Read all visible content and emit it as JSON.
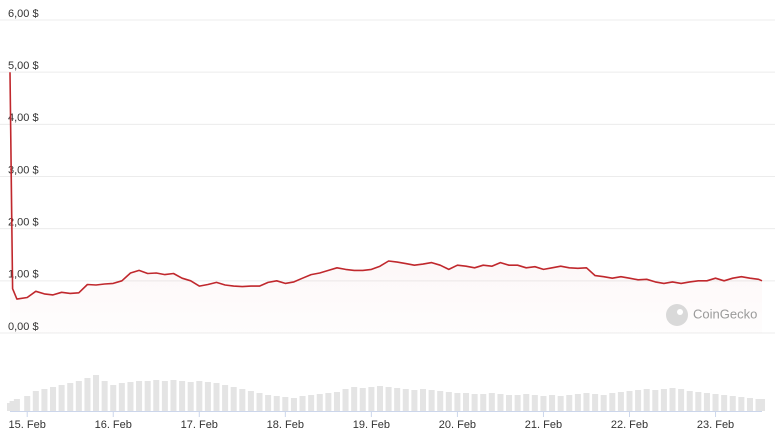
{
  "chart_data": {
    "type": "line",
    "watermark": "CoinGecko",
    "x": [
      -0.2,
      -0.17,
      -0.12,
      0,
      0.1,
      0.2,
      0.3,
      0.4,
      0.5,
      0.6,
      0.7,
      0.8,
      0.9,
      1.0,
      1.1,
      1.2,
      1.3,
      1.4,
      1.5,
      1.6,
      1.7,
      1.8,
      1.9,
      2.0,
      2.1,
      2.2,
      2.3,
      2.4,
      2.5,
      2.6,
      2.7,
      2.8,
      2.9,
      3.0,
      3.1,
      3.2,
      3.3,
      3.4,
      3.5,
      3.6,
      3.7,
      3.8,
      3.9,
      4.0,
      4.1,
      4.2,
      4.3,
      4.4,
      4.5,
      4.6,
      4.7,
      4.8,
      4.9,
      5.0,
      5.1,
      5.2,
      5.3,
      5.4,
      5.5,
      5.6,
      5.7,
      5.8,
      5.9,
      6.0,
      6.1,
      6.2,
      6.3,
      6.4,
      6.5,
      6.6,
      6.7,
      6.8,
      6.9,
      7.0,
      7.1,
      7.2,
      7.3,
      7.4,
      7.5,
      7.6,
      7.7,
      7.8,
      7.9,
      8.0,
      8.1,
      8.2,
      8.3,
      8.4,
      8.5,
      8.54
    ],
    "series": [
      {
        "color": "#c0282d",
        "values": [
          5.0,
          0.85,
          0.65,
          0.68,
          0.8,
          0.75,
          0.73,
          0.78,
          0.76,
          0.77,
          0.93,
          0.92,
          0.94,
          0.95,
          1.0,
          1.15,
          1.2,
          1.14,
          1.15,
          1.12,
          1.14,
          1.05,
          1.0,
          0.9,
          0.93,
          0.97,
          0.92,
          0.9,
          0.89,
          0.9,
          0.9,
          0.97,
          1.0,
          0.95,
          0.98,
          1.05,
          1.12,
          1.15,
          1.2,
          1.25,
          1.22,
          1.2,
          1.2,
          1.22,
          1.28,
          1.38,
          1.36,
          1.33,
          1.3,
          1.32,
          1.35,
          1.3,
          1.22,
          1.3,
          1.28,
          1.25,
          1.3,
          1.28,
          1.35,
          1.3,
          1.3,
          1.25,
          1.27,
          1.22,
          1.25,
          1.28,
          1.25,
          1.24,
          1.25,
          1.1,
          1.08,
          1.05,
          1.08,
          1.05,
          1.02,
          1.03,
          0.98,
          0.95,
          0.98,
          0.95,
          0.98,
          1.0,
          1.0,
          1.05,
          1.0,
          1.05,
          1.08,
          1.05,
          1.03,
          1.0
        ]
      }
    ],
    "volume": {
      "color": "#e4e4e4",
      "vlim": [
        0,
        40
      ],
      "values": [
        8,
        10,
        12,
        15,
        20,
        22,
        24,
        26,
        28,
        30,
        33,
        36,
        30,
        26,
        28,
        29,
        30,
        30,
        31,
        30,
        31,
        30,
        29,
        30,
        29,
        28,
        26,
        24,
        22,
        20,
        18,
        16,
        15,
        14,
        13,
        15,
        16,
        17,
        18,
        19,
        22,
        24,
        23,
        24,
        25,
        24,
        23,
        22,
        21,
        22,
        21,
        20,
        19,
        18,
        18,
        17,
        17,
        18,
        17,
        16,
        16,
        17,
        16,
        15,
        16,
        15,
        16,
        17,
        18,
        17,
        16,
        18,
        19,
        20,
        21,
        22,
        21,
        22,
        23,
        22,
        20,
        19,
        18,
        17,
        16,
        15,
        14,
        13,
        12,
        12
      ]
    },
    "xlim": [
      -0.2,
      8.54
    ],
    "xticks": [
      {
        "value": 0,
        "label": "15. Feb"
      },
      {
        "value": 1,
        "label": "16. Feb"
      },
      {
        "value": 2,
        "label": "17. Feb"
      },
      {
        "value": 3,
        "label": "18. Feb"
      },
      {
        "value": 4,
        "label": "19. Feb"
      },
      {
        "value": 5,
        "label": "20. Feb"
      },
      {
        "value": 6,
        "label": "21. Feb"
      },
      {
        "value": 7,
        "label": "22. Feb"
      },
      {
        "value": 8,
        "label": "23. Feb"
      }
    ],
    "ylim": [
      0,
      6
    ],
    "yticks": [
      {
        "value": 0,
        "label": "0,00 $"
      },
      {
        "value": 1,
        "label": "1,00 $"
      },
      {
        "value": 2,
        "label": "2,00 $"
      },
      {
        "value": 3,
        "label": "3,00 $"
      },
      {
        "value": 4,
        "label": "4,00 $"
      },
      {
        "value": 5,
        "label": "5,00 $"
      },
      {
        "value": 6,
        "label": "6,00 $"
      }
    ],
    "grid": true
  }
}
